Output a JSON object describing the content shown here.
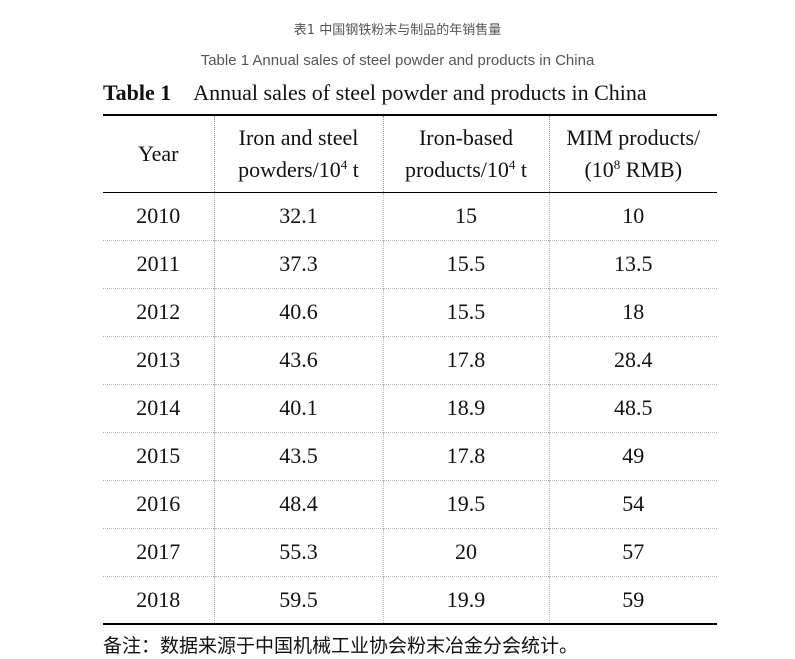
{
  "caption_cn": "表1 中国钢铁粉末与制品的年销售量",
  "caption_en": "Table 1 Annual sales of steel powder and products in China",
  "table_title": {
    "label": "Table 1",
    "text": "Annual sales of steel powder and products in China"
  },
  "columns": [
    {
      "line1": "Year",
      "line2": "",
      "sup": "",
      "after_sup": ""
    },
    {
      "line1": "Iron and steel",
      "line2": "powders/10",
      "sup": "4",
      "after_sup": " t"
    },
    {
      "line1": "Iron-based",
      "line2": "products/10",
      "sup": "4",
      "after_sup": " t"
    },
    {
      "line1": "MIM products/",
      "line2": "(10",
      "sup": "8",
      "after_sup": " RMB)"
    }
  ],
  "rows": [
    [
      "2010",
      "32.1",
      "15",
      "10"
    ],
    [
      "2011",
      "37.3",
      "15.5",
      "13.5"
    ],
    [
      "2012",
      "40.6",
      "15.5",
      "18"
    ],
    [
      "2013",
      "43.6",
      "17.8",
      "28.4"
    ],
    [
      "2014",
      "40.1",
      "18.9",
      "48.5"
    ],
    [
      "2015",
      "43.5",
      "17.8",
      "49"
    ],
    [
      "2016",
      "48.4",
      "19.5",
      "54"
    ],
    [
      "2017",
      "55.3",
      "20",
      "57"
    ],
    [
      "2018",
      "59.5",
      "19.9",
      "59"
    ]
  ],
  "note": "备注：数据来源于中国机械工业协会粉末冶金分会统计。"
}
